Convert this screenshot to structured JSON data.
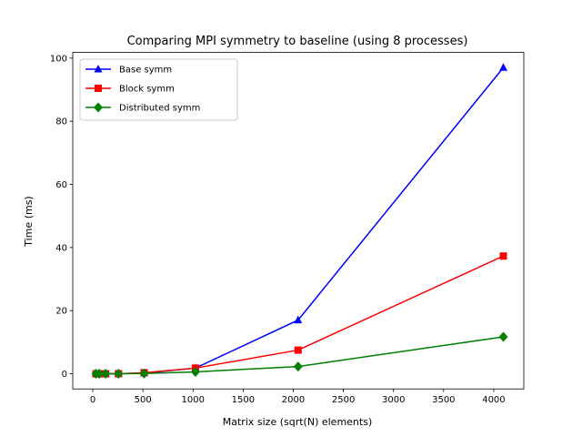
{
  "chart_data": {
    "type": "line",
    "title": "Comparing MPI symmetry to baseline (using 8 processes)",
    "xlabel": "Matrix size (sqrt(N) elements)",
    "ylabel": "Time (ms)",
    "xlim": [
      -200,
      4300
    ],
    "ylim": [
      -4.8,
      101.8
    ],
    "xticks": [
      0,
      500,
      1000,
      1500,
      2000,
      2500,
      3000,
      3500,
      4000
    ],
    "yticks": [
      0,
      20,
      40,
      60,
      80,
      100
    ],
    "grid": false,
    "legend_position": "top-left",
    "x": [
      32,
      64,
      128,
      256,
      512,
      1024,
      2048,
      4096
    ],
    "series": [
      {
        "name": "Base symm",
        "color": "#0000ff",
        "marker": "triangle",
        "values": [
          0.0,
          0.0,
          0.0,
          0.02,
          0.2,
          1.8,
          17.0,
          97.0
        ]
      },
      {
        "name": "Block symm",
        "color": "#ff0000",
        "marker": "square",
        "values": [
          0.0,
          0.0,
          0.0,
          0.03,
          0.35,
          1.8,
          7.5,
          37.3
        ]
      },
      {
        "name": "Distributed symm",
        "color": "#008000",
        "marker": "diamond",
        "values": [
          0.0,
          0.0,
          0.0,
          0.01,
          0.1,
          0.6,
          2.3,
          11.7
        ]
      }
    ]
  }
}
